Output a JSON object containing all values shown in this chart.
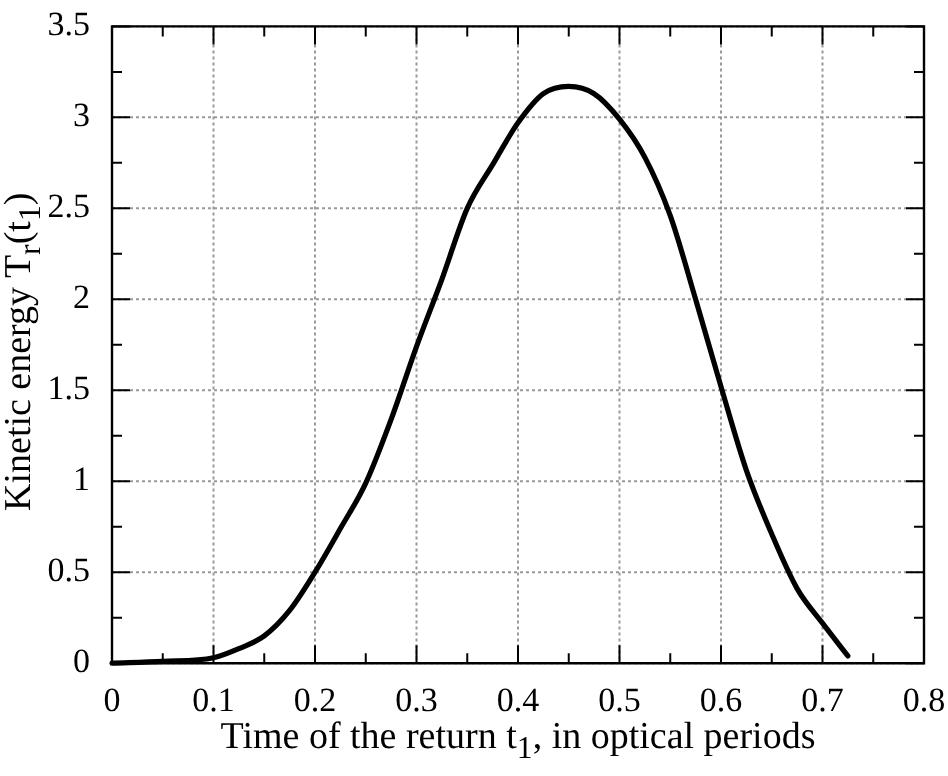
{
  "chart_data": {
    "type": "line",
    "xlabel": "Time of the return t$_{1}$, in optical periods",
    "ylabel": "Kinetic energy T$_{r}$(t$_{1}$)",
    "x": [
      0,
      0.05,
      0.1,
      0.125,
      0.15,
      0.175,
      0.2,
      0.225,
      0.25,
      0.275,
      0.3,
      0.325,
      0.35,
      0.375,
      0.4,
      0.425,
      0.45,
      0.475,
      0.5,
      0.525,
      0.55,
      0.575,
      0.6,
      0.625,
      0.65,
      0.675,
      0.7,
      0.725
    ],
    "series": [
      {
        "color": "#000000",
        "values": [
          0,
          0.01,
          0.03,
          0.08,
          0.15,
          0.29,
          0.5,
          0.74,
          0.99,
          1.34,
          1.74,
          2.11,
          2.5,
          2.74,
          2.97,
          3.13,
          3.17,
          3.13,
          2.99,
          2.78,
          2.46,
          2.0,
          1.52,
          1.06,
          0.71,
          0.41,
          0.22,
          0.04
        ]
      }
    ],
    "xlim": [
      0,
      0.8
    ],
    "ylim": [
      0,
      3.5
    ],
    "xticks": [
      0,
      {
        "value": 0.05,
        "label": null
      },
      0.1,
      {
        "value": 0.15,
        "label": null
      },
      0.2,
      {
        "value": 0.25,
        "label": null
      },
      0.3,
      {
        "value": 0.35,
        "label": null
      },
      0.4,
      {
        "value": 0.45,
        "label": null
      },
      0.5,
      {
        "value": 0.55,
        "label": null
      },
      0.6,
      {
        "value": 0.65,
        "label": null
      },
      0.7,
      {
        "value": 0.75,
        "label": null
      },
      0.8
    ],
    "yticks": [
      0,
      {
        "value": 0.25,
        "label": null
      },
      0.5,
      {
        "value": 0.75,
        "label": null
      },
      1,
      {
        "value": 1.25,
        "label": null
      },
      1.5,
      {
        "value": 1.75,
        "label": null
      },
      2,
      {
        "value": 2.25,
        "label": null
      },
      2.5,
      {
        "value": 2.75,
        "label": null
      },
      3,
      {
        "value": 3.25,
        "label": null
      },
      3.5
    ],
    "grid": true,
    "legend": false,
    "marker": "none",
    "line_style": "solid"
  }
}
